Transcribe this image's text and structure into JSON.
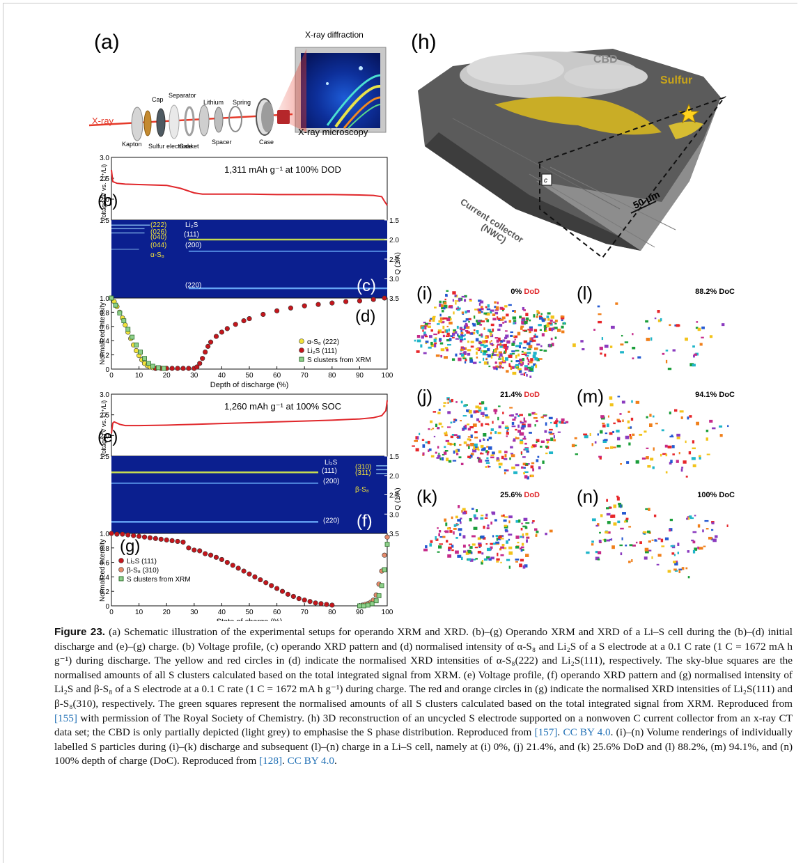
{
  "panels": {
    "a": {
      "letter": "(a)",
      "labels": {
        "xrd": "X-ray diffraction",
        "xray": "X-ray",
        "cap": "Cap",
        "separator": "Separator",
        "lithium": "Lithium",
        "spring": "Spring",
        "kapton": "Kapton",
        "sulfur_electrode": "Sulfur electrode",
        "gasket": "Gasket",
        "spacer": "Spacer",
        "case": "Case",
        "xrm": "X-ray microscopy"
      }
    },
    "b": {
      "letter": "(b)",
      "note": "1,311 mAh g⁻¹ at 100% DOD",
      "ylabel": "Voltage (V vs. Li⁺/Li)"
    },
    "c": {
      "letter": "(c)",
      "q_label": "Q (1/A)",
      "peaks": [
        "(222)",
        "(026)",
        "(040)",
        "(044)",
        "α-S₈",
        "Li₂S",
        "(111)",
        "(200)",
        "(220)"
      ]
    },
    "d": {
      "letter": "(d)",
      "ylabel": "Normalized intensity",
      "xlabel": "Depth of discharge (%)",
      "legend": [
        "α-S₈ (222)",
        "Li₂S (111)",
        "S clusters from XRM"
      ]
    },
    "e": {
      "letter": "(e)",
      "note": "1,260 mAh g⁻¹ at 100% SOC",
      "ylabel": "Voltage (V vs. Li⁺/Li)"
    },
    "f": {
      "letter": "(f)",
      "q_label": "Q (1/A)",
      "peaks": [
        "Li₂S",
        "(111)",
        "(200)",
        "(220)",
        "(310)",
        "(311)",
        "β-S₈"
      ]
    },
    "g": {
      "letter": "(g)",
      "ylabel": "Normalized intensity",
      "xlabel": "State of charge (%)",
      "legend": [
        "Li₂S (111)",
        "β-S₈ (310)",
        "S clusters from XRM"
      ]
    },
    "h": {
      "letter": "(h)",
      "labels": {
        "cbd": "CBD",
        "sulfur": "Sulfur",
        "c_box": "c",
        "scale": "50 μm",
        "cc1": "Current collector",
        "cc2": "(NWC)"
      }
    },
    "i": {
      "letter": "(i)",
      "pct": "0%",
      "state": "DoD"
    },
    "j": {
      "letter": "(j)",
      "pct": "21.4%",
      "state": "DoD"
    },
    "k": {
      "letter": "(k)",
      "pct": "25.6%",
      "state": "DoD"
    },
    "l": {
      "letter": "(l)",
      "pct": "88.2% DoC"
    },
    "m": {
      "letter": "(m)",
      "pct": "94.1% DoC"
    },
    "n": {
      "letter": "(n)",
      "pct": "100% DoC"
    }
  },
  "ticks": {
    "voltage": [
      "3.0",
      "2.5",
      "2.0",
      "1.5"
    ],
    "q": [
      "1.5",
      "2.0",
      "2.5",
      "3.0",
      "3.5"
    ],
    "norm": [
      "1.0",
      "0.8",
      "0.6",
      "0.4",
      "0.2",
      "0"
    ],
    "x": [
      "0",
      "10",
      "20",
      "30",
      "40",
      "50",
      "60",
      "70",
      "80",
      "90",
      "100"
    ]
  },
  "colors": {
    "voltage_line": "#e0262a",
    "xrd_bg": "#0b1f8f",
    "alpha_s8": "#f2e23a",
    "li2s": "#c4161c",
    "beta_s8": "#e58a6a",
    "xrm": "#8ed08a",
    "link": "#1f6fb5",
    "dod_red": "#e0262a"
  },
  "chart_data": [
    {
      "type": "line",
      "title": "1,311 mAh g⁻¹ at 100% DOD",
      "ylabel": "Voltage (V vs. Li⁺/Li)",
      "ylim": [
        1.5,
        3.0
      ],
      "xlim": [
        0,
        100
      ],
      "series": [
        {
          "x": [
            0,
            0.5,
            2,
            5,
            10,
            20,
            25,
            30,
            33,
            40,
            50,
            60,
            70,
            80,
            90,
            95,
            98,
            99,
            100
          ],
          "y": [
            2.7,
            2.42,
            2.38,
            2.36,
            2.35,
            2.33,
            2.26,
            2.15,
            2.12,
            2.12,
            2.12,
            2.11,
            2.11,
            2.11,
            2.1,
            2.09,
            2.06,
            1.95,
            1.85
          ]
        }
      ]
    },
    {
      "type": "scatter",
      "xlabel": "Depth of discharge (%)",
      "ylabel": "Normalized intensity",
      "xlim": [
        0,
        100
      ],
      "ylim": [
        0,
        1.0
      ],
      "series": [
        {
          "name": "α-S₈ (222)",
          "x": [
            0,
            1,
            2,
            3,
            4,
            5,
            6,
            7,
            8,
            9,
            10,
            11,
            12,
            13,
            14,
            15,
            16
          ],
          "y": [
            1.0,
            0.95,
            0.88,
            0.8,
            0.72,
            0.62,
            0.52,
            0.43,
            0.34,
            0.26,
            0.19,
            0.13,
            0.08,
            0.05,
            0.03,
            0.02,
            0.01
          ]
        },
        {
          "name": "Li₂S (111)",
          "x": [
            16,
            18,
            20,
            22,
            24,
            26,
            28,
            30,
            31,
            32,
            33,
            34,
            35,
            36,
            38,
            40,
            42,
            45,
            48,
            50,
            55,
            60,
            65,
            70,
            75,
            80,
            85,
            90,
            95,
            99
          ],
          "y": [
            0.01,
            0.01,
            0.01,
            0.01,
            0.01,
            0.01,
            0.01,
            0.01,
            0.03,
            0.08,
            0.15,
            0.24,
            0.32,
            0.38,
            0.46,
            0.52,
            0.57,
            0.63,
            0.68,
            0.71,
            0.77,
            0.82,
            0.86,
            0.89,
            0.91,
            0.93,
            0.95,
            0.96,
            0.98,
            1.0
          ]
        },
        {
          "name": "S clusters from XRM",
          "x": [
            0,
            1.5,
            3,
            4.5,
            6,
            7.5,
            9,
            10.5,
            12,
            13.5,
            15,
            17,
            19
          ],
          "y": [
            1.0,
            0.9,
            0.79,
            0.68,
            0.56,
            0.45,
            0.34,
            0.24,
            0.15,
            0.08,
            0.04,
            0.02,
            0.01
          ]
        }
      ]
    },
    {
      "type": "line",
      "title": "1,260 mAh g⁻¹ at 100% SOC",
      "ylabel": "Voltage (V vs. Li⁺/Li)",
      "ylim": [
        1.5,
        3.0
      ],
      "xlim": [
        0,
        100
      ],
      "series": [
        {
          "x": [
            0,
            0.5,
            1,
            3,
            5,
            10,
            20,
            30,
            40,
            50,
            60,
            70,
            80,
            90,
            95,
            98,
            99.5,
            100
          ],
          "y": [
            2.05,
            2.3,
            2.33,
            2.27,
            2.24,
            2.24,
            2.25,
            2.27,
            2.29,
            2.31,
            2.33,
            2.35,
            2.37,
            2.4,
            2.43,
            2.48,
            2.6,
            2.85
          ]
        }
      ]
    },
    {
      "type": "scatter",
      "xlabel": "State of charge (%)",
      "ylabel": "Normalized intensity",
      "xlim": [
        0,
        100
      ],
      "ylim": [
        0,
        1.0
      ],
      "series": [
        {
          "name": "Li₂S (111)",
          "x": [
            0,
            2,
            4,
            6,
            8,
            10,
            12,
            14,
            16,
            18,
            20,
            22,
            24,
            26,
            28,
            30,
            32,
            34,
            36,
            38,
            40,
            42,
            44,
            46,
            48,
            50,
            52,
            54,
            56,
            58,
            60,
            62,
            64,
            66,
            68,
            70,
            72,
            74,
            76,
            78,
            80
          ],
          "y": [
            1.0,
            0.99,
            0.99,
            0.98,
            0.97,
            0.96,
            0.95,
            0.94,
            0.93,
            0.92,
            0.91,
            0.9,
            0.89,
            0.88,
            0.8,
            0.77,
            0.76,
            0.72,
            0.7,
            0.67,
            0.64,
            0.6,
            0.56,
            0.52,
            0.48,
            0.44,
            0.4,
            0.36,
            0.32,
            0.28,
            0.24,
            0.2,
            0.16,
            0.13,
            0.1,
            0.08,
            0.06,
            0.04,
            0.03,
            0.02,
            0.01
          ]
        },
        {
          "name": "β-S₈ (310)",
          "x": [
            90,
            91,
            92,
            93,
            94,
            95,
            96,
            97,
            98,
            99,
            100
          ],
          "y": [
            0.0,
            0.01,
            0.02,
            0.03,
            0.05,
            0.08,
            0.15,
            0.3,
            0.48,
            0.7,
            0.95
          ]
        },
        {
          "name": "S clusters from XRM",
          "x": [
            90,
            91.5,
            93,
            94.5,
            96,
            97,
            98,
            99,
            100
          ],
          "y": [
            0.0,
            0.0,
            0.01,
            0.03,
            0.07,
            0.14,
            0.28,
            0.5,
            0.85
          ]
        }
      ]
    }
  ],
  "caption": {
    "label": "Figure 23.",
    "text": " (a) Schematic illustration of the experimental setups for operando XRM and XRD. (b)–(g) Operando XRM and XRD of a Li–S cell during the (b)–(d) initial discharge and (e)–(g) charge. (b) Voltage profile, (c) operando XRD pattern and (d) normalised intensity of α-S₈ and Li₂S of a S electrode at a 0.1 C rate (1 C = 1672 mA h g⁻¹) during discharge. The yellow and red circles in (d) indicate the normalised XRD intensities of α-S₈(222) and Li₂S(111), respectively. The sky-blue squares are the normalised amounts of all S clusters calculated based on the total integrated signal from XRM. (e) Voltage profile, (f) operando XRD pattern and (g) normalised intensity of Li₂S and β-S₈ of a S electrode at a 0.1 C rate (1 C = 1672 mA h g⁻¹) during charge. The red and orange circles in (g) indicate the normalised XRD intensities of Li₂S(111) and β-S₈(310), respectively. The green squares represent the normalised amounts of all S clusters calculated based on the total integrated signal from XRM. Reproduced from ",
    "ref1": "[155]",
    "text2": " with permission of The Royal Society of Chemistry. (h) 3D reconstruction of an uncycled S electrode supported on a nonwoven C current collector from an x-ray CT data set; the CBD is only partially depicted (light grey) to emphasise the S phase distribution. Reproduced from ",
    "ref2": "[157]",
    "text3": ". ",
    "lic1": "CC BY 4.0",
    "text4": ". (i)–(n) Volume renderings of individually labelled S particles during (i)–(k) discharge and subsequent (l)–(n) charge in a Li–S cell, namely at (i) 0%, (j) 21.4%, and (k) 25.6% DoD and (l) 88.2%, (m) 94.1%, and (n) 100% depth of charge (DoC). Reproduced from ",
    "ref3": "[128]",
    "text5": ". ",
    "lic2": "CC BY 4.0",
    "text6": "."
  }
}
